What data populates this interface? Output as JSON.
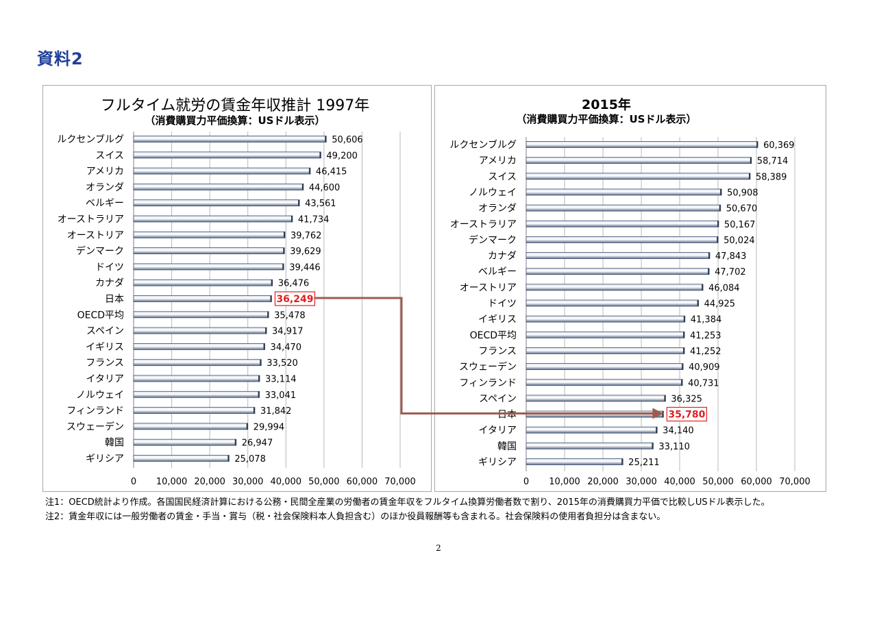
{
  "page": {
    "heading": "資料2",
    "page_number": "2",
    "notes": [
      "注1：OECD統計より作成。各国国民経済計算における公務・民間全産業の労働者の賃金年収をフルタイム換算労働者数で割り、2015年の消費購買力平価で比較しUSドル表示した。",
      "注2：賃金年収には一般労働者の賃金・手当・賞与（税・社会保険料本人負担含む）のほか役員報酬等も含まれる。社会保険料の使用者負担分は含まない。"
    ]
  },
  "colors": {
    "heading": "#1f3f99",
    "bar_light": "#dde3ee",
    "bar_dark": "#5b6e8c",
    "bar_edge": "#3c4b66",
    "highlight_text": "#e02020",
    "highlight_box": "#e02020",
    "arrow": "#a05a50"
  },
  "chart_data": [
    {
      "type": "bar",
      "orientation": "horizontal",
      "title": "フルタイム就労の賃金年収推計 1997年",
      "subtitle": "（消費購買力平価換算：USドル表示）",
      "categories": [
        "ルクセンブルグ",
        "スイス",
        "アメリカ",
        "オランダ",
        "ベルギー",
        "オーストラリア",
        "オーストリア",
        "デンマーク",
        "ドイツ",
        "カナダ",
        "日本",
        "OECD平均",
        "スペイン",
        "イギリス",
        "フランス",
        "イタリア",
        "ノルウェイ",
        "フィンランド",
        "スウェーデン",
        "韓国",
        "ギリシア"
      ],
      "values": [
        50606,
        49200,
        46415,
        44600,
        43561,
        41734,
        39762,
        39629,
        39446,
        36476,
        36249,
        35478,
        34917,
        34470,
        33520,
        33114,
        33041,
        31842,
        29994,
        26947,
        25078
      ],
      "value_labels": [
        "50,606",
        "49,200",
        "46,415",
        "44,600",
        "43,561",
        "41,734",
        "39,762",
        "39,629",
        "39,446",
        "36,476",
        "36,249",
        "35,478",
        "34,917",
        "34,470",
        "33,520",
        "33,114",
        "33,041",
        "31,842",
        "29,994",
        "26,947",
        "25,078"
      ],
      "highlight": "日本",
      "xlim": [
        0,
        70000
      ],
      "xticks": [
        0,
        10000,
        20000,
        30000,
        40000,
        50000,
        60000,
        70000
      ],
      "xtick_labels": [
        "0",
        "10,000",
        "20,000",
        "30,000",
        "40,000",
        "50,000",
        "60,000",
        "70,000"
      ],
      "grid": true,
      "legend": "none"
    },
    {
      "type": "bar",
      "orientation": "horizontal",
      "title": "2015年",
      "subtitle": "（消費購買力平価換算：USドル表示）",
      "categories": [
        "ルクセンブルグ",
        "アメリカ",
        "スイス",
        "ノルウェイ",
        "オランダ",
        "オーストラリア",
        "デンマーク",
        "カナダ",
        "ベルギー",
        "オーストリア",
        "ドイツ",
        "イギリス",
        "OECD平均",
        "フランス",
        "スウェーデン",
        "フィンランド",
        "スペイン",
        "日本",
        "イタリア",
        "韓国",
        "ギリシア"
      ],
      "values": [
        60369,
        58714,
        58389,
        50908,
        50670,
        50167,
        50024,
        47843,
        47702,
        46084,
        44925,
        41384,
        41253,
        41252,
        40909,
        40731,
        36325,
        35780,
        34140,
        33110,
        25211
      ],
      "value_labels": [
        "60,369",
        "58,714",
        "58,389",
        "50,908",
        "50,670",
        "50,167",
        "50,024",
        "47,843",
        "47,702",
        "46,084",
        "44,925",
        "41,384",
        "41,253",
        "41,252",
        "40,909",
        "40,731",
        "36,325",
        "35,780",
        "34,140",
        "33,110",
        "25,211"
      ],
      "highlight": "日本",
      "xlim": [
        0,
        70000
      ],
      "xticks": [
        0,
        10000,
        20000,
        30000,
        40000,
        50000,
        60000,
        70000
      ],
      "xtick_labels": [
        "0",
        "10,000",
        "20,000",
        "30,000",
        "40,000",
        "50,000",
        "60,000",
        "70,000"
      ],
      "grid": true,
      "legend": "none"
    }
  ]
}
